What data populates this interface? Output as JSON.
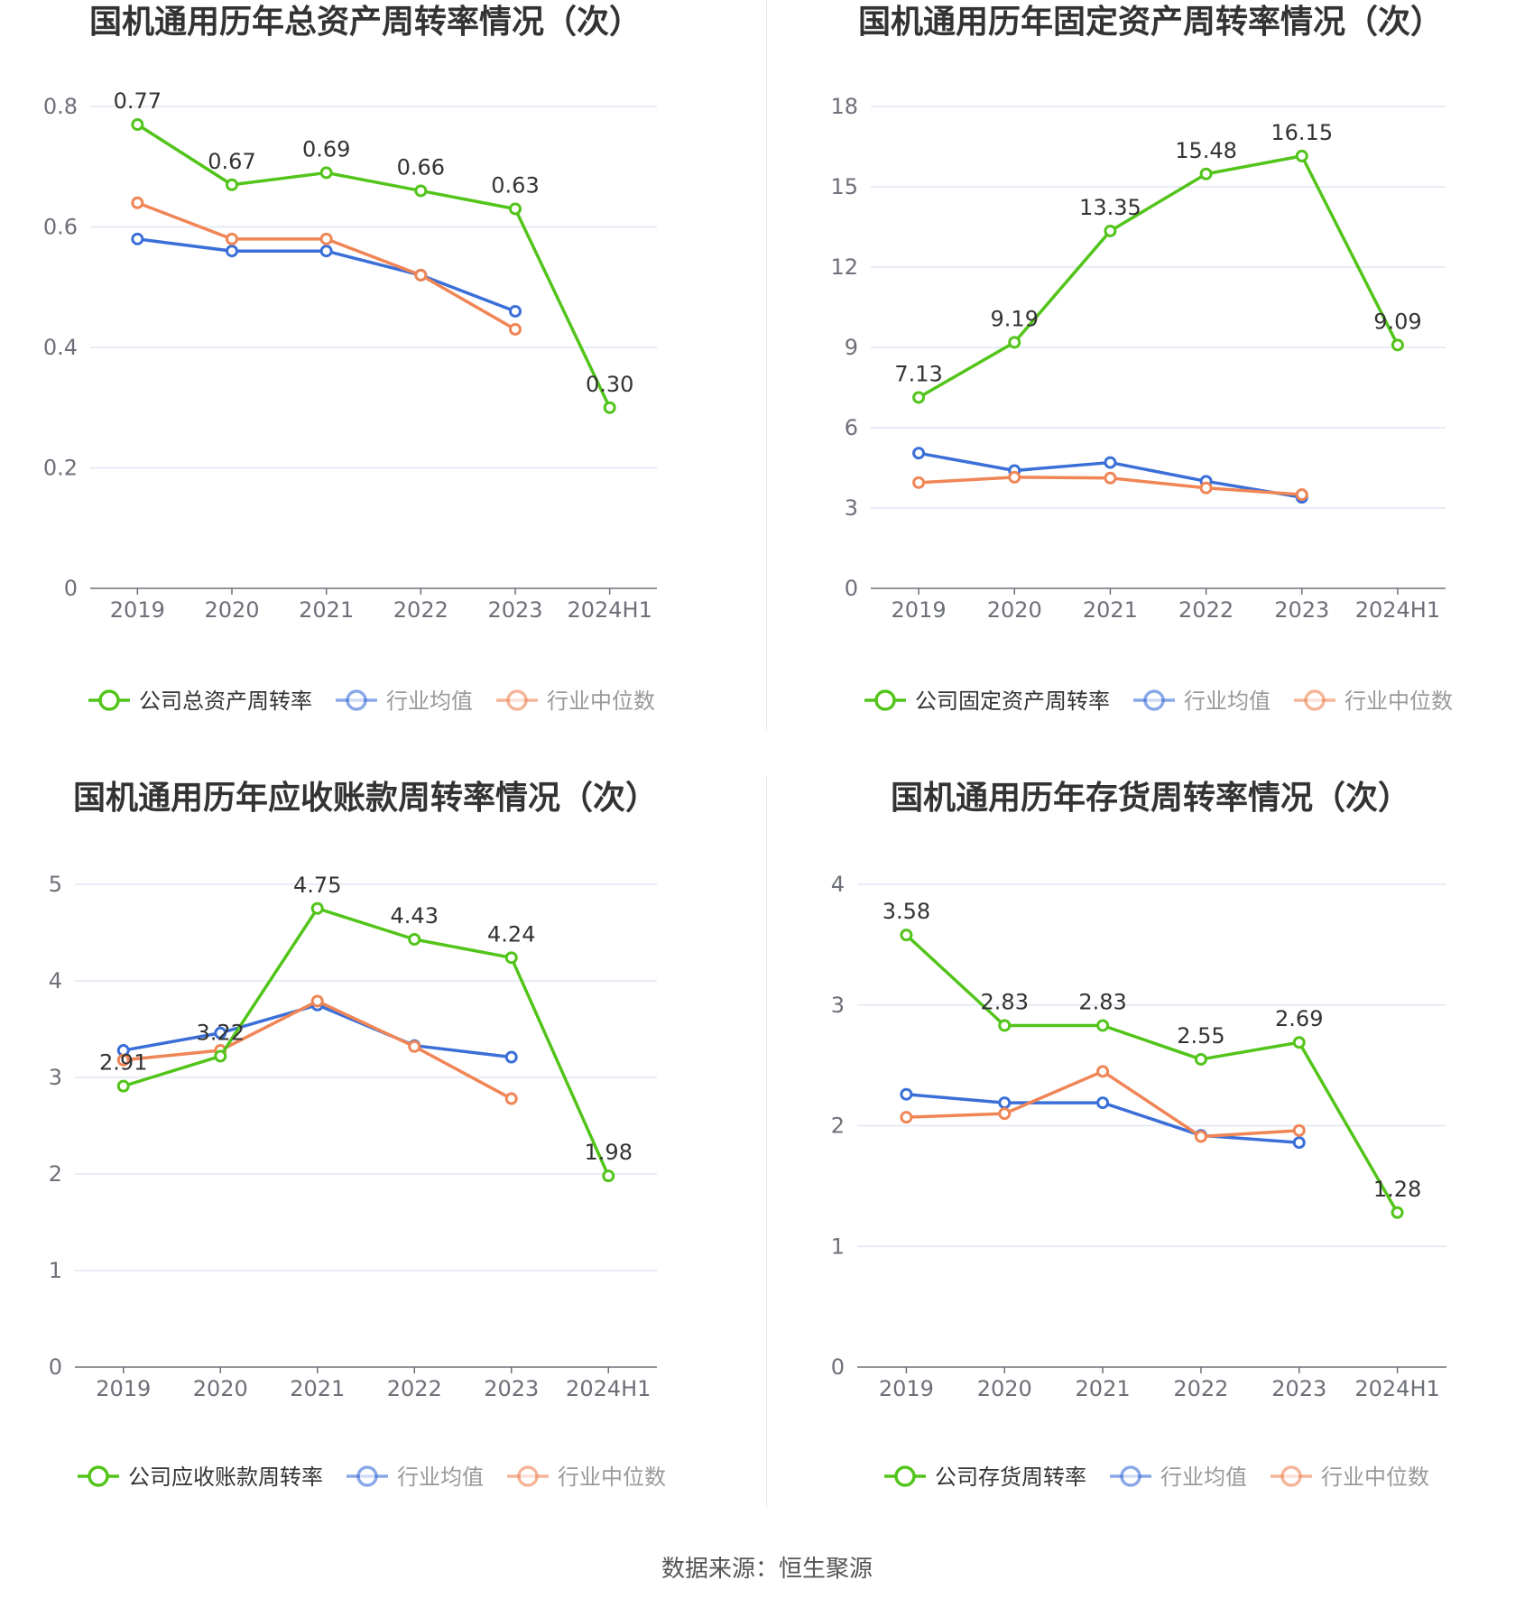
{
  "source": "数据来源：恒生聚源",
  "colors": {
    "company": "#52c41a",
    "avg": "#3b6fd8",
    "median": "#f08556",
    "grid": "#e0e6f1",
    "axis": "#6e7079"
  },
  "chart_data": [
    {
      "type": "line",
      "title": "国机通用历年总资产周转率情况（次）",
      "categories": [
        "2019",
        "2020",
        "2021",
        "2022",
        "2023",
        "2024H1"
      ],
      "ylim": [
        0,
        0.8
      ],
      "yticks": [
        "0",
        "0.2",
        "0.4",
        "0.6",
        "0.8"
      ],
      "legend_position": "bottom",
      "series": [
        {
          "name": "公司总资产周转率",
          "color": "#52c41a",
          "labels": [
            "0.77",
            "0.67",
            "0.69",
            "0.66",
            "0.63",
            "0.30"
          ],
          "values": [
            0.77,
            0.67,
            0.69,
            0.66,
            0.63,
            0.3
          ]
        },
        {
          "name": "行业均值",
          "color": "#3b6fd8",
          "values": [
            0.58,
            0.56,
            0.56,
            0.52,
            0.46,
            null
          ]
        },
        {
          "name": "行业中位数",
          "color": "#f08556",
          "values": [
            0.64,
            0.58,
            0.58,
            0.52,
            0.43,
            null
          ]
        }
      ]
    },
    {
      "type": "line",
      "title": "国机通用历年固定资产周转率情况（次）",
      "categories": [
        "2019",
        "2020",
        "2021",
        "2022",
        "2023",
        "2024H1"
      ],
      "ylim": [
        0,
        18
      ],
      "yticks": [
        "0",
        "3",
        "6",
        "9",
        "12",
        "15",
        "18"
      ],
      "legend_position": "bottom",
      "series": [
        {
          "name": "公司固定资产周转率",
          "color": "#52c41a",
          "labels": [
            "7.13",
            "9.19",
            "13.35",
            "15.48",
            "16.15",
            "9.09"
          ],
          "values": [
            7.13,
            9.19,
            13.35,
            15.48,
            16.15,
            9.09
          ]
        },
        {
          "name": "行业均值",
          "color": "#3b6fd8",
          "values": [
            5.05,
            4.4,
            4.7,
            4.0,
            3.4,
            null
          ]
        },
        {
          "name": "行业中位数",
          "color": "#f08556",
          "values": [
            3.95,
            4.15,
            4.12,
            3.75,
            3.5,
            null
          ]
        }
      ]
    },
    {
      "type": "line",
      "title": "国机通用历年应收账款周转率情况（次）",
      "categories": [
        "2019",
        "2020",
        "2021",
        "2022",
        "2023",
        "2024H1"
      ],
      "ylim": [
        0,
        5
      ],
      "yticks": [
        "0",
        "1",
        "2",
        "3",
        "4",
        "5"
      ],
      "legend_position": "bottom",
      "series": [
        {
          "name": "公司应收账款周转率",
          "color": "#52c41a",
          "labels": [
            "2.91",
            "3.22",
            "4.75",
            "4.43",
            "4.24",
            "1.98"
          ],
          "values": [
            2.91,
            3.22,
            4.75,
            4.43,
            4.24,
            1.98
          ]
        },
        {
          "name": "行业均值",
          "color": "#3b6fd8",
          "values": [
            3.28,
            3.46,
            3.75,
            3.33,
            3.21,
            null
          ]
        },
        {
          "name": "行业中位数",
          "color": "#f08556",
          "values": [
            3.18,
            3.28,
            3.79,
            3.32,
            2.78,
            null
          ]
        }
      ]
    },
    {
      "type": "line",
      "title": "国机通用历年存货周转率情况（次）",
      "categories": [
        "2019",
        "2020",
        "2021",
        "2022",
        "2023",
        "2024H1"
      ],
      "ylim": [
        0,
        4
      ],
      "yticks": [
        "0",
        "1",
        "2",
        "3",
        "4"
      ],
      "legend_position": "bottom",
      "series": [
        {
          "name": "公司存货周转率",
          "color": "#52c41a",
          "labels": [
            "3.58",
            "2.83",
            "2.83",
            "2.55",
            "2.69",
            "1.28"
          ],
          "values": [
            3.58,
            2.83,
            2.83,
            2.55,
            2.69,
            1.28
          ]
        },
        {
          "name": "行业均值",
          "color": "#3b6fd8",
          "values": [
            2.26,
            2.19,
            2.19,
            1.92,
            1.86,
            null
          ]
        },
        {
          "name": "行业中位数",
          "color": "#f08556",
          "values": [
            2.07,
            2.1,
            2.45,
            1.91,
            1.96,
            null
          ]
        }
      ]
    }
  ]
}
